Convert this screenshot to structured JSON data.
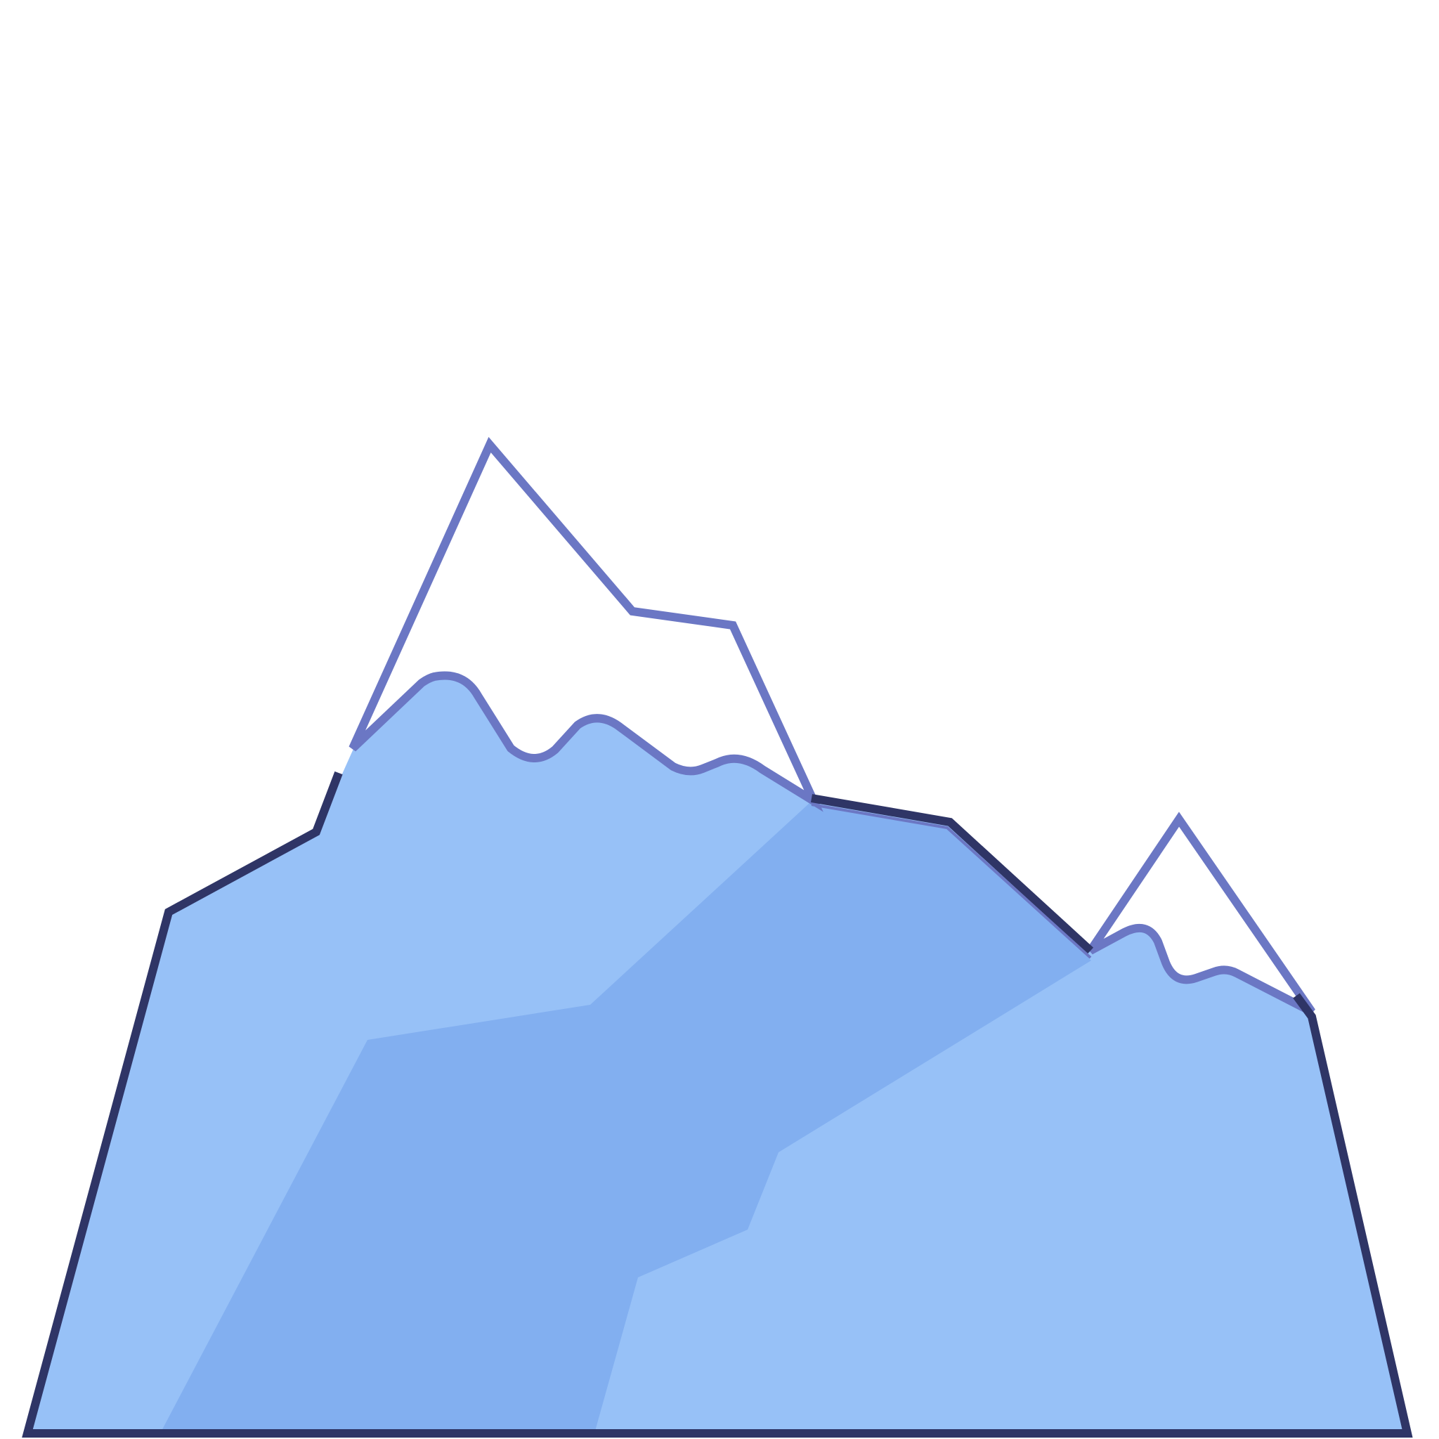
{
  "illustration": {
    "subject": "mountain-range-icon",
    "colors": {
      "background": "#ffffff",
      "outline": "#2f3566",
      "snow_outline": "#6b77c4",
      "snow_fill": "#ffffff",
      "slope_light": "#97c1f7",
      "slope_shadow": "#82aff0"
    }
  }
}
